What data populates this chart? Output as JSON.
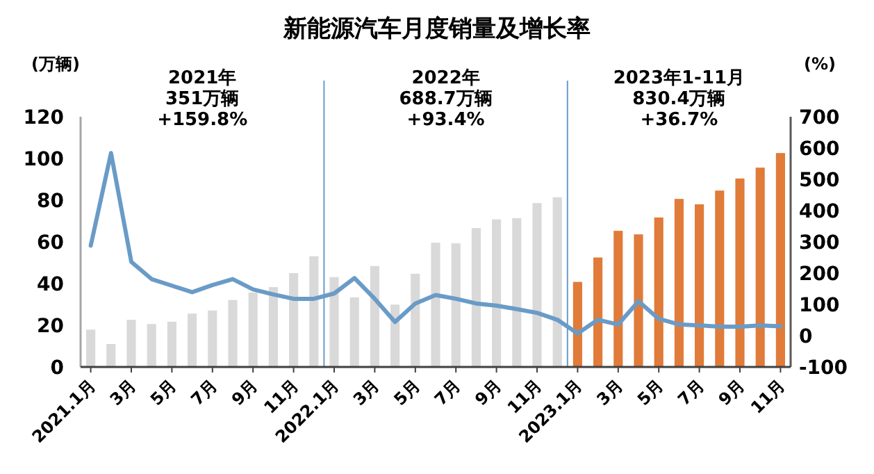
{
  "chart_data": {
    "type": "bar",
    "title": "新能源汽车月度销量及增长率",
    "ylabel": "(万辆)",
    "y2label": "(%)",
    "categories": [
      "2021.1月",
      null,
      "3月",
      null,
      "5月",
      null,
      "7月",
      null,
      "9月",
      null,
      "11月",
      null,
      "2022.1月",
      null,
      "3月",
      null,
      "5月",
      null,
      "7月",
      null,
      "9月",
      null,
      "11月",
      null,
      "2023.1月",
      null,
      "3月",
      null,
      "5月",
      null,
      "7月",
      null,
      "9月",
      null,
      "11月"
    ],
    "series": [
      {
        "colors": [
          "#d9d9d9",
          "#d9d9d9",
          "#d9d9d9",
          "#d9d9d9",
          "#d9d9d9",
          "#d9d9d9",
          "#d9d9d9",
          "#d9d9d9",
          "#d9d9d9",
          "#d9d9d9",
          "#d9d9d9",
          "#d9d9d9",
          "#d9d9d9",
          "#d9d9d9",
          "#d9d9d9",
          "#d9d9d9",
          "#d9d9d9",
          "#d9d9d9",
          "#d9d9d9",
          "#d9d9d9",
          "#d9d9d9",
          "#d9d9d9",
          "#d9d9d9",
          "#d9d9d9",
          "#e07b39",
          "#e07b39",
          "#e07b39",
          "#e07b39",
          "#e07b39",
          "#e07b39",
          "#e07b39",
          "#e07b39",
          "#e07b39",
          "#e07b39",
          "#e07b39"
        ],
        "values": [
          17.9,
          11.0,
          22.6,
          20.6,
          21.7,
          25.6,
          27.1,
          32.1,
          35.7,
          38.3,
          45.0,
          53.1,
          43.1,
          33.4,
          48.4,
          29.9,
          44.7,
          59.6,
          59.3,
          66.6,
          70.8,
          71.4,
          78.6,
          81.4,
          40.8,
          52.5,
          65.3,
          63.6,
          71.7,
          80.6,
          78.0,
          84.6,
          90.4,
          95.6,
          102.6
        ]
      },
      {
        "type": "line",
        "axis": "y2",
        "color": "#6a9bc7",
        "values": [
          288,
          584,
          236,
          181,
          160,
          139,
          162,
          181,
          148,
          132,
          118,
          118,
          135,
          184,
          118,
          44,
          103,
          130,
          118,
          103,
          96,
          85,
          73,
          51,
          7,
          51,
          36,
          110,
          54,
          36,
          33,
          29,
          29,
          33,
          30
        ]
      }
    ],
    "ylim": [
      0,
      120
    ],
    "yticks": [
      0,
      20,
      40,
      60,
      80,
      100,
      120
    ],
    "y2lim": [
      -100,
      700
    ],
    "y2ticks": [
      -100,
      0,
      100,
      200,
      300,
      400,
      500,
      600,
      700
    ],
    "annotations": [
      "2021年",
      "351万辆",
      "+159.8%",
      "2022年",
      "688.7万辆",
      "+93.4%",
      "2023年1-11月",
      "830.4万辆",
      "+36.7%"
    ],
    "grid": false,
    "marker": "none",
    "line_style": "solid"
  }
}
